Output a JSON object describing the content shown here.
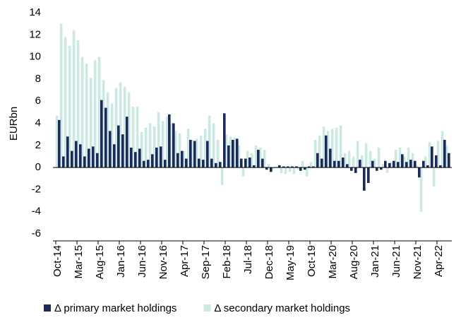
{
  "chart_data": {
    "type": "bar",
    "y_label": "EURbn",
    "categories": [
      "Oct-14",
      null,
      null,
      null,
      null,
      "Mar-15",
      null,
      null,
      null,
      null,
      "Aug-15",
      null,
      null,
      null,
      null,
      "Jan-16",
      null,
      null,
      null,
      null,
      "Jun-16",
      null,
      null,
      null,
      null,
      "Nov-16",
      null,
      null,
      null,
      null,
      "Apr-17",
      null,
      null,
      null,
      null,
      "Sep-17",
      null,
      null,
      null,
      null,
      "Feb-18",
      null,
      null,
      null,
      null,
      "Jul-18",
      null,
      null,
      null,
      null,
      "Dec-18",
      null,
      null,
      null,
      null,
      "May-19",
      null,
      null,
      null,
      null,
      "Oct-19",
      null,
      null,
      null,
      null,
      "Mar-20",
      null,
      null,
      null,
      null,
      "Aug-20",
      null,
      null,
      null,
      null,
      "Jan-21",
      null,
      null,
      null,
      null,
      "Jun-21",
      null,
      null,
      null,
      null,
      "Nov-21",
      null,
      null,
      null,
      null,
      "Apr-22",
      null,
      null
    ],
    "series": [
      {
        "name": "Δ primary market holdings",
        "color": "#1c2a5a",
        "values": [
          4.3,
          1.0,
          2.8,
          1.5,
          2.4,
          2.1,
          1.0,
          1.7,
          1.9,
          1.3,
          6.1,
          5.4,
          3.3,
          2.1,
          3.8,
          3.0,
          4.6,
          1.8,
          1.4,
          1.7,
          0.6,
          0.7,
          1.2,
          1.8,
          1.9,
          0.7,
          4.8,
          4.0,
          1.3,
          1.5,
          0.8,
          2.5,
          2.4,
          0.8,
          0.7,
          2.4,
          0.8,
          0.4,
          0.5,
          4.9,
          2.0,
          2.5,
          2.6,
          0.8,
          0.8,
          0.9,
          0.2,
          1.6,
          0.8,
          -0.2,
          -0.4,
          0,
          0.2,
          0.1,
          0.1,
          0.1,
          0.1,
          -0.3,
          -0.2,
          0.1,
          0.1,
          1.3,
          0.8,
          2.9,
          1.7,
          0.6,
          0.6,
          0.9,
          0.3,
          -0.3,
          -0.5,
          0.7,
          -2.1,
          -1.4,
          0.6,
          -0.3,
          -0.2,
          0.6,
          0.4,
          0.6,
          0.5,
          1.2,
          0.5,
          0.7,
          0.6,
          -0.9,
          0.6,
          0.2,
          1.9,
          1.1,
          0.2,
          2.5,
          1.3
        ]
      },
      {
        "name": "Δ secondary market holdings",
        "color": "#cce8e3",
        "values": [
          4.7,
          13.0,
          11.8,
          11.0,
          12.4,
          11.5,
          10.0,
          9.4,
          8.1,
          9.7,
          10.0,
          7.9,
          6.8,
          5.8,
          7.2,
          7.7,
          7.3,
          6.8,
          5.5,
          5.5,
          3.2,
          3.6,
          4.0,
          3.7,
          5.0,
          4.2,
          4.6,
          4.0,
          3.3,
          3.1,
          1.5,
          3.5,
          2.5,
          2.6,
          2.9,
          3.5,
          4.7,
          4.0,
          2.5,
          -1.6,
          3.0,
          2.8,
          2.7,
          2.0,
          -0.8,
          1.5,
          1.3,
          2.0,
          1.8,
          1.6,
          0.3,
          -0.2,
          0.1,
          -0.5,
          -0.6,
          -0.4,
          -0.6,
          -0.2,
          0.6,
          -0.8,
          0.5,
          2.5,
          2.9,
          3.7,
          3.3,
          3.5,
          3.6,
          3.8,
          1.3,
          1.5,
          1.0,
          2.4,
          1.1,
          2.2,
          1.5,
          0.8,
          1.8,
          0.3,
          -0.5,
          0.5,
          1.6,
          1.8,
          1.0,
          1.8,
          1.3,
          0.2,
          -4.0,
          1.0,
          2.3,
          -1.7,
          2.4,
          3.3,
          2.0
        ]
      }
    ],
    "ylim": [
      -6,
      14
    ],
    "yticks": [
      -6,
      -4,
      -2,
      0,
      2,
      4,
      6,
      8,
      10,
      12,
      14
    ],
    "grid": false,
    "legend": "bottom"
  }
}
